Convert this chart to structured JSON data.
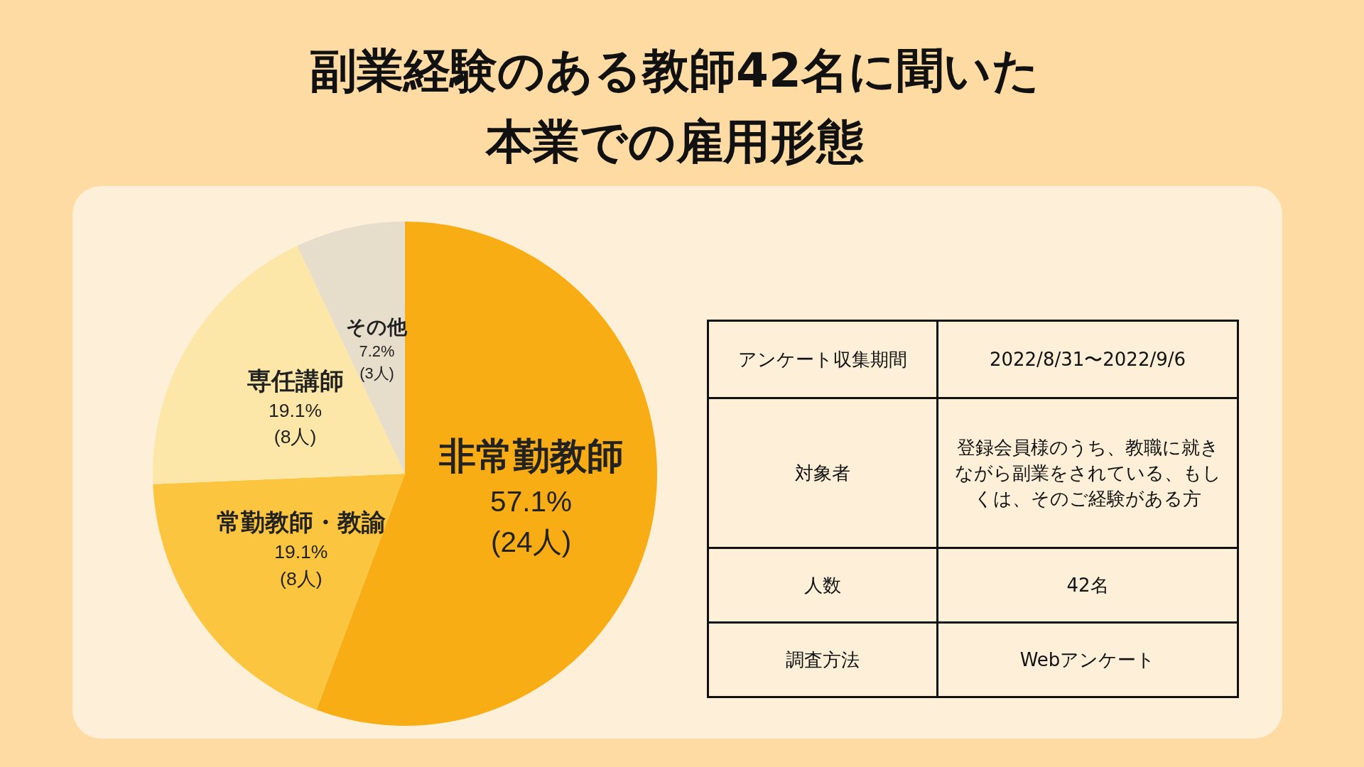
{
  "chart_data": [
    {
      "type": "pie",
      "title": "副業経験のある教師42名に聞いた本業での雇用形態",
      "categories": [
        "非常勤教師",
        "常勤教師・教諭",
        "専任講師",
        "その他"
      ],
      "values": [
        57.1,
        19.1,
        19.1,
        7.2
      ],
      "value_labels": [
        "57.1%\n(24人)",
        "19.1%\n(8人)",
        "19.1%\n(8人)",
        "7.2%\n(3人)"
      ],
      "colors": [
        "#f9ad14",
        "#fbc53f",
        "#fde7a8",
        "#e6ddcb"
      ],
      "legend": false
    },
    {
      "type": "other",
      "annotations": [
        "アンケート収集期間",
        "2022/8/31〜2022/9/6",
        "対象者",
        "登録会員様のうち、教職に就きながら副業をされている、もしくは、そのご経験がある方",
        "人数",
        "42名",
        "調査方法",
        "Webアンケート"
      ]
    }
  ]
}
